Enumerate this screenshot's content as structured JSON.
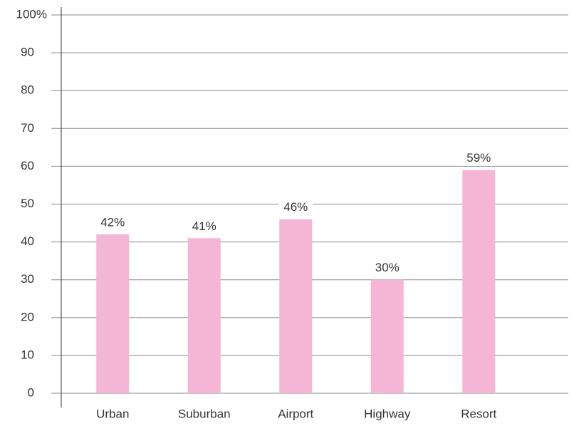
{
  "chart_data": {
    "type": "bar",
    "categories": [
      "Urban",
      "Suburban",
      "Airport",
      "Highway",
      "Resort"
    ],
    "values": [
      42,
      41,
      46,
      30,
      59
    ],
    "value_labels": [
      "42%",
      "41%",
      "46%",
      "30%",
      "59%"
    ],
    "color": "#f5b6d6",
    "ylim": [
      0,
      100
    ],
    "yticks": [
      0,
      10,
      20,
      30,
      40,
      50,
      60,
      70,
      80,
      90,
      {
        "value": 100,
        "label": "100%"
      }
    ],
    "grid": true
  }
}
